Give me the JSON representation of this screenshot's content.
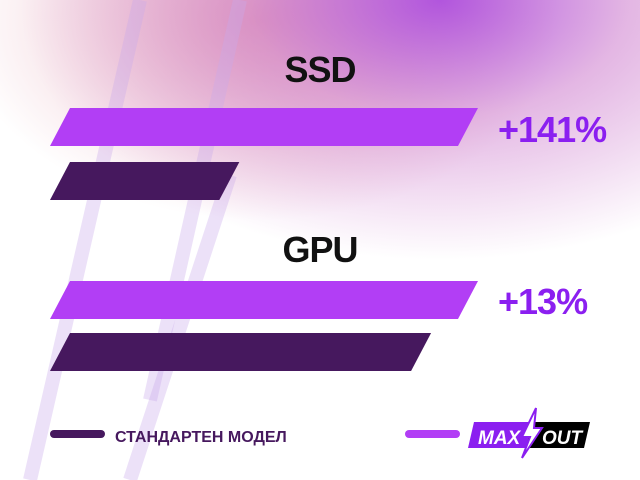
{
  "chart_data": {
    "type": "bar",
    "orientation": "horizontal",
    "categories": [
      "SSD",
      "GPU"
    ],
    "series": [
      {
        "name": "MAX OUT",
        "color": "#b23ef5",
        "values": [
          100,
          100
        ]
      },
      {
        "name": "СТАНДАРТЕН МОДЕЛ",
        "color": "#46185e",
        "values": [
          41.5,
          88.5
        ]
      }
    ],
    "data_labels": [
      "+141%",
      "+13%"
    ],
    "xlim": [
      0,
      100
    ],
    "grid": false,
    "legend_position": "bottom"
  },
  "legend": {
    "standard_label": "СТАНДАРТЕН МОДЕЛ",
    "logo_text_max": "MAX",
    "logo_text_out": "OUT"
  },
  "colors": {
    "accent": "#b23ef5",
    "dark": "#46185e",
    "label": "#8b1ff0"
  }
}
